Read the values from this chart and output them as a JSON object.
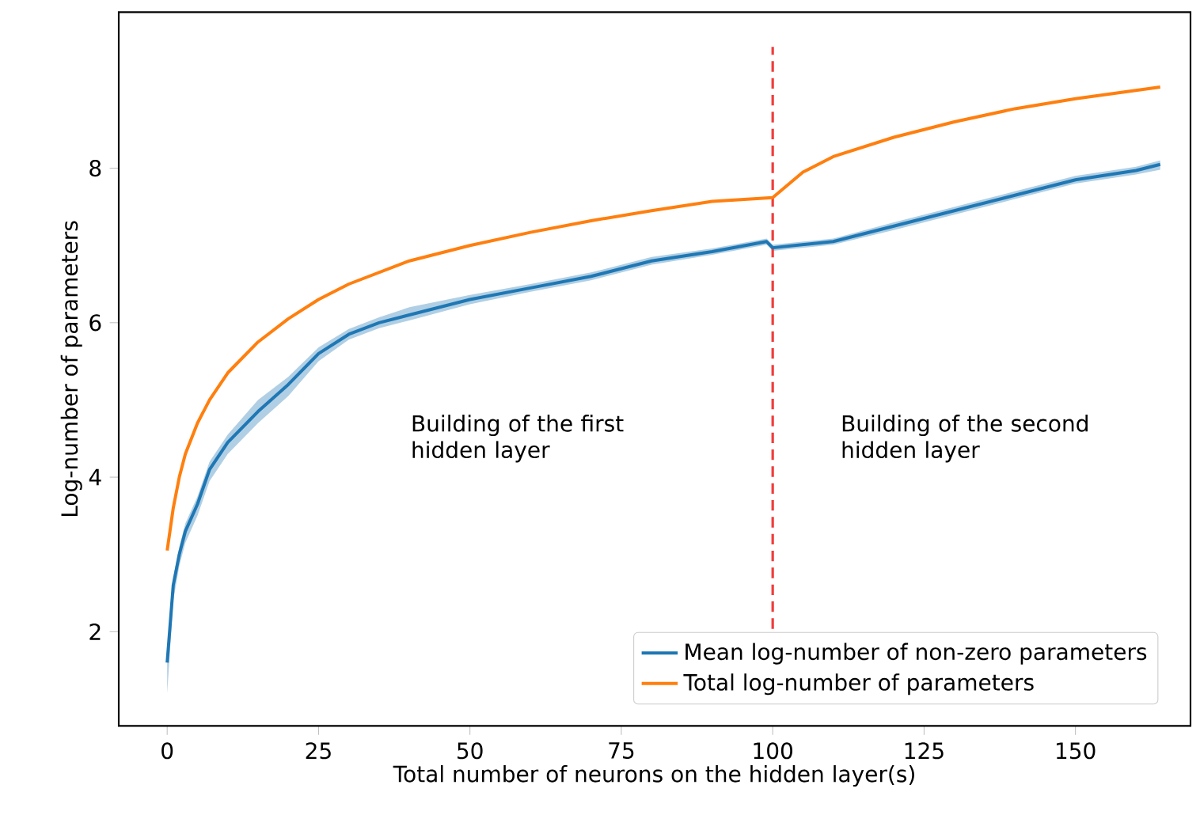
{
  "chart_data": {
    "type": "line",
    "xlabel": "Total number of neurons on the hidden layer(s)",
    "ylabel": "Log-number of parameters",
    "xlim": [
      -8,
      169
    ],
    "ylim": [
      0.78,
      10.02
    ],
    "xticks": [
      0,
      25,
      50,
      75,
      100,
      125,
      150
    ],
    "yticks": [
      2,
      4,
      6,
      8
    ],
    "grid": false,
    "legend": "bottom right",
    "marker": "none",
    "line_style": "solid",
    "series": [
      {
        "name": "Mean log-number of non-zero parameters",
        "color": "#1f77b4",
        "x": [
          0,
          1,
          2,
          3,
          5,
          7,
          10,
          15,
          20,
          25,
          30,
          35,
          40,
          50,
          60,
          70,
          80,
          90,
          99,
          100,
          110,
          120,
          130,
          140,
          150,
          160,
          164
        ],
        "values": [
          1.6,
          2.6,
          3.0,
          3.3,
          3.65,
          4.1,
          4.45,
          4.85,
          5.2,
          5.6,
          5.85,
          6.0,
          6.1,
          6.3,
          6.45,
          6.6,
          6.8,
          6.92,
          7.05,
          6.97,
          7.05,
          7.25,
          7.45,
          7.65,
          7.85,
          7.97,
          8.05
        ],
        "lower": [
          1.2,
          2.4,
          2.85,
          3.15,
          3.5,
          3.95,
          4.3,
          4.7,
          5.05,
          5.5,
          5.78,
          5.93,
          6.03,
          6.24,
          6.4,
          6.55,
          6.75,
          6.88,
          7.01,
          6.93,
          7.01,
          7.2,
          7.4,
          7.6,
          7.8,
          7.92,
          7.98
        ],
        "upper": [
          1.7,
          2.7,
          3.1,
          3.4,
          3.75,
          4.2,
          4.55,
          5.0,
          5.3,
          5.68,
          5.92,
          6.07,
          6.2,
          6.36,
          6.5,
          6.65,
          6.85,
          6.96,
          7.09,
          7.01,
          7.09,
          7.3,
          7.5,
          7.7,
          7.9,
          8.02,
          8.1
        ]
      },
      {
        "name": "Total log-number of parameters",
        "color": "#ff7f0e",
        "x": [
          0,
          1,
          2,
          3,
          5,
          7,
          10,
          15,
          20,
          25,
          30,
          40,
          50,
          60,
          70,
          80,
          90,
          100,
          105,
          110,
          120,
          130,
          140,
          150,
          164
        ],
        "values": [
          3.05,
          3.6,
          4.0,
          4.3,
          4.7,
          5.0,
          5.35,
          5.75,
          6.05,
          6.3,
          6.5,
          6.8,
          7.0,
          7.17,
          7.32,
          7.45,
          7.57,
          7.62,
          7.95,
          8.15,
          8.4,
          8.6,
          8.77,
          8.9,
          9.05
        ]
      }
    ],
    "ref_lines": [
      {
        "axis": "x",
        "value": 100,
        "color": "#f03c3c",
        "line_style": "dashed"
      }
    ],
    "annotations": [
      "Building of the first hidden layer",
      "Building of the second hidden layer"
    ]
  }
}
